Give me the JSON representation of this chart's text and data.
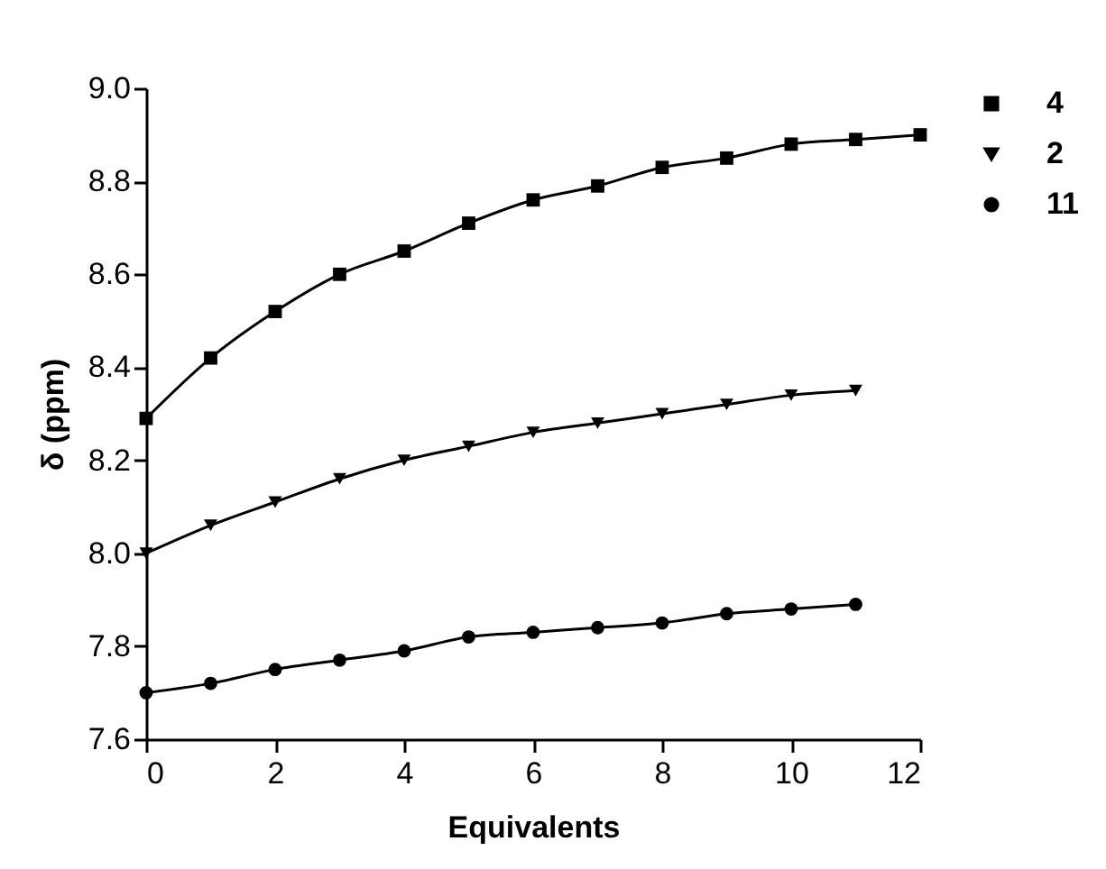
{
  "chart_data": {
    "type": "line",
    "xlabel": "Equivalents",
    "ylabel": "δ (ppm)",
    "xlim": [
      0,
      12
    ],
    "xticks": [
      0,
      2,
      4,
      6,
      8,
      10,
      12
    ],
    "ylim": [
      7.6,
      9.0
    ],
    "yticks": [
      7.6,
      7.8,
      {
        "value": 8,
        "label": "8.0"
      },
      8.2,
      8.4,
      8.6,
      8.8,
      {
        "value": 9,
        "label": "9.0"
      }
    ],
    "grid": false,
    "legend": "right",
    "line_style": "solid",
    "series": [
      {
        "name": "4",
        "color": "#000000",
        "marker": "square",
        "x": [
          0,
          1,
          2,
          3,
          4,
          5,
          6,
          7,
          8,
          9,
          10,
          11,
          12
        ],
        "values": [
          8.29,
          8.42,
          8.52,
          8.6,
          8.65,
          8.71,
          8.76,
          8.79,
          8.83,
          8.85,
          8.88,
          8.89,
          8.9
        ]
      },
      {
        "name": "2",
        "color": "#000000",
        "marker": "triangle",
        "x": [
          0,
          1,
          2,
          3,
          4,
          5,
          6,
          7,
          8,
          9,
          10,
          11
        ],
        "values": [
          8.0,
          8.06,
          8.11,
          8.16,
          8.2,
          8.23,
          8.26,
          8.28,
          8.3,
          8.32,
          8.34,
          8.35
        ]
      },
      {
        "name": "11",
        "color": "#000000",
        "marker": "circle",
        "x": [
          0,
          1,
          2,
          3,
          4,
          5,
          6,
          7,
          8,
          9,
          10,
          11
        ],
        "values": [
          7.7,
          7.72,
          7.75,
          7.77,
          7.79,
          7.82,
          7.83,
          7.84,
          7.85,
          7.87,
          7.88,
          7.89
        ]
      }
    ]
  }
}
